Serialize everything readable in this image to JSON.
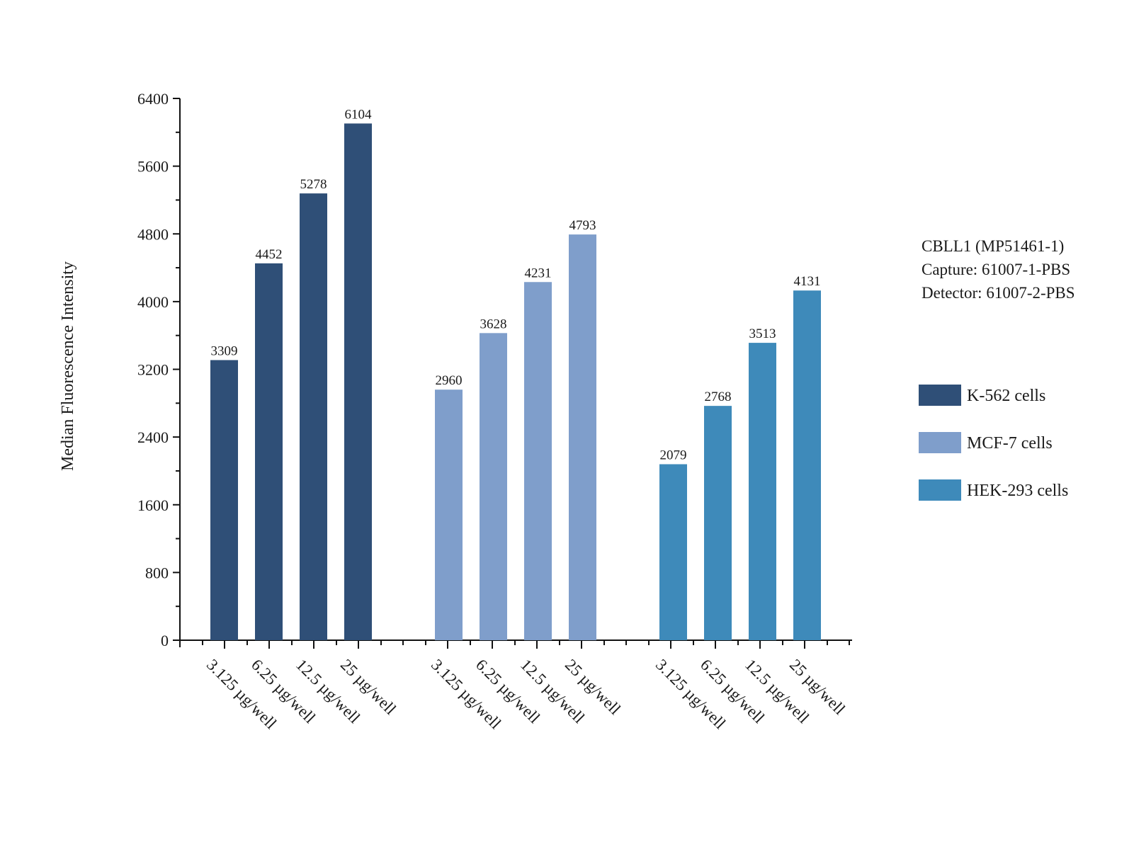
{
  "chart_data": {
    "type": "bar",
    "title": "",
    "xlabel": "",
    "ylabel": "Median Fluorescence Intensity",
    "ylim": [
      0,
      6400
    ],
    "yticks": [
      0,
      800,
      1600,
      2400,
      3200,
      4000,
      4800,
      5600,
      6400
    ],
    "grid": false,
    "legend_position": "right",
    "categories": [
      "3.125 µg/well",
      "6.25 µg/well",
      "12.5 µg/well",
      "25 µg/well"
    ],
    "series": [
      {
        "name": "K-562 cells",
        "color": "#2f4f77",
        "values": [
          3309,
          4452,
          5278,
          6104
        ]
      },
      {
        "name": "MCF-7 cells",
        "color": "#7f9ecb",
        "values": [
          2960,
          3628,
          4231,
          4793
        ]
      },
      {
        "name": "HEK-293 cells",
        "color": "#3e8aba",
        "values": [
          2079,
          2768,
          3513,
          4131
        ]
      }
    ],
    "annotations": [
      "CBLL1 (MP51461-1)",
      "Capture: 61007-1-PBS",
      "Detector: 61007-2-PBS"
    ]
  }
}
